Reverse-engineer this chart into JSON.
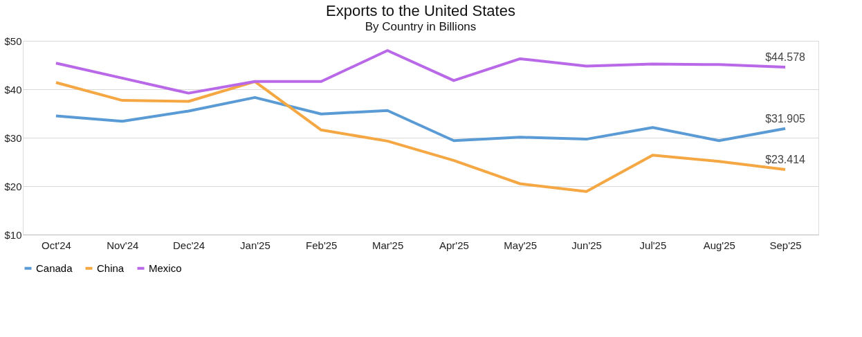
{
  "chart_data": {
    "type": "line",
    "title": "Exports to the United States",
    "subtitle": "By Country in Billions",
    "categories": [
      "Oct'24",
      "Nov'24",
      "Dec'24",
      "Jan'25",
      "Feb'25",
      "Mar'25",
      "Apr'25",
      "May'25",
      "Jun'25",
      "Jul'25",
      "Aug'25",
      "Sep'25"
    ],
    "series": [
      {
        "name": "Canada",
        "color": "#5b9bd5",
        "values": [
          34.5,
          33.4,
          35.5,
          38.3,
          34.9,
          35.6,
          29.4,
          30.1,
          29.7,
          32.1,
          29.4,
          31.905
        ],
        "value_labels": [
          null,
          null,
          null,
          null,
          null,
          null,
          null,
          null,
          null,
          null,
          null,
          "$31.905"
        ]
      },
      {
        "name": "China",
        "color": "#f4a742",
        "values": [
          41.4,
          37.7,
          37.5,
          41.6,
          31.6,
          29.3,
          25.3,
          20.5,
          18.9,
          26.4,
          25.1,
          23.414
        ],
        "value_labels": [
          null,
          null,
          null,
          null,
          null,
          null,
          null,
          null,
          null,
          null,
          null,
          "$23.414"
        ]
      },
      {
        "name": "Mexico",
        "color": "#b968e8",
        "values": [
          45.4,
          42.3,
          39.2,
          41.6,
          41.6,
          48.0,
          41.8,
          46.3,
          44.8,
          45.2,
          45.1,
          44.578
        ],
        "value_labels": [
          null,
          null,
          null,
          null,
          null,
          null,
          null,
          null,
          null,
          null,
          null,
          "$44.578"
        ]
      }
    ],
    "ylim": [
      10,
      50
    ],
    "yticks": [
      {
        "value": 10,
        "label": "$10"
      },
      {
        "value": 20,
        "label": "$20"
      },
      {
        "value": 30,
        "label": "$30"
      },
      {
        "value": 40,
        "label": "$40"
      },
      {
        "value": 50,
        "label": "$50"
      }
    ],
    "grid": "y",
    "legend": "bottom",
    "marker": "none",
    "line_style": "solid"
  }
}
